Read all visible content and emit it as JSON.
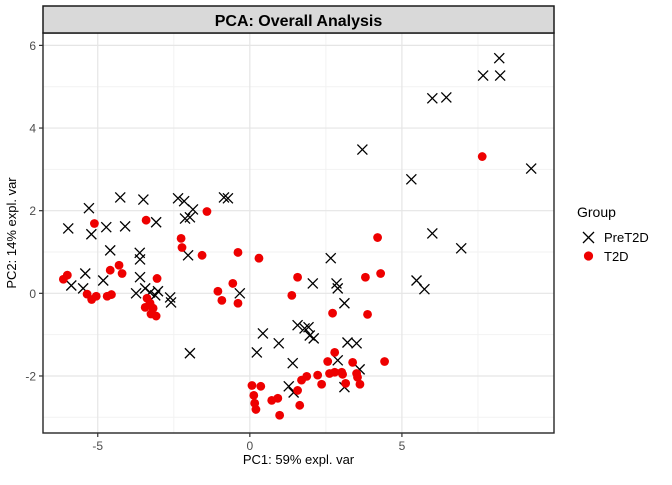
{
  "figure": {
    "strip_title": "PCA: Overall Analysis"
  },
  "colors": {
    "strip_fill": "#D9D9D9",
    "strip_border": "#1A1A1A",
    "panel_border": "#262626",
    "grid_major": "#E5E5E5",
    "grid_minor": "#F2F2F2",
    "tick_mark": "#333333",
    "tick_label": "#4d4d4d",
    "pret2d": "#000000",
    "t2d": "#EE0000"
  },
  "chart_data": {
    "type": "scatter",
    "title": "PCA: Overall Analysis",
    "xlabel": "PC1: 59% expl. var",
    "ylabel": "PC2: 14% expl. var",
    "xlim": [
      -6.8,
      10.0
    ],
    "ylim": [
      -3.38,
      6.3
    ],
    "x_major_ticks": [
      -5,
      0,
      5
    ],
    "x_minor_ticks": [
      -2.5,
      2.5,
      7.5
    ],
    "y_major_ticks": [
      -2,
      0,
      2,
      4,
      6
    ],
    "y_minor_ticks": [
      -3,
      -1,
      1,
      3,
      5
    ],
    "grid": true,
    "legend": {
      "title": "Group",
      "position": "right",
      "entries": [
        {
          "label": "PreT2D",
          "marker": "x",
          "color": "#000000"
        },
        {
          "label": "T2D",
          "marker": "circle",
          "color": "#EE0000"
        }
      ]
    },
    "series": [
      {
        "name": "PreT2D",
        "marker": "x",
        "color": "#000000",
        "points": [
          [
            8.2,
            5.69
          ],
          [
            7.67,
            5.27
          ],
          [
            8.23,
            5.27
          ],
          [
            6.0,
            4.72
          ],
          [
            6.46,
            4.74
          ],
          [
            3.7,
            3.48
          ],
          [
            9.25,
            3.02
          ],
          [
            5.31,
            2.76
          ],
          [
            6.0,
            1.45
          ],
          [
            6.95,
            1.09
          ],
          [
            5.48,
            0.31
          ],
          [
            5.74,
            0.1
          ],
          [
            2.66,
            0.85
          ],
          [
            2.85,
            0.24
          ],
          [
            2.89,
            0.12
          ],
          [
            2.07,
            0.24
          ],
          [
            3.11,
            -0.24
          ],
          [
            3.21,
            -1.19
          ],
          [
            3.51,
            -1.21
          ],
          [
            2.89,
            -1.62
          ],
          [
            3.61,
            -1.84
          ],
          [
            3.11,
            -2.27
          ],
          [
            1.57,
            -0.77
          ],
          [
            1.8,
            -0.85
          ],
          [
            1.93,
            -0.82
          ],
          [
            1.97,
            -1.02
          ],
          [
            2.1,
            -1.09
          ],
          [
            1.41,
            -1.69
          ],
          [
            1.28,
            -2.25
          ],
          [
            1.44,
            -2.4
          ],
          [
            0.43,
            -0.97
          ],
          [
            0.23,
            -1.43
          ],
          [
            0.95,
            -1.21
          ],
          [
            -1.97,
            -1.45
          ],
          [
            -0.33,
            0.0
          ],
          [
            -0.85,
            2.32
          ],
          [
            -0.72,
            2.3
          ],
          [
            -1.87,
            2.03
          ],
          [
            -1.97,
            1.84
          ],
          [
            -2.03,
            0.92
          ],
          [
            -4.26,
            2.32
          ],
          [
            -3.5,
            2.27
          ],
          [
            -2.36,
            2.3
          ],
          [
            -2.16,
            2.23
          ],
          [
            -5.29,
            2.06
          ],
          [
            -5.97,
            1.57
          ],
          [
            -5.21,
            1.43
          ],
          [
            -4.72,
            1.6
          ],
          [
            -4.1,
            1.62
          ],
          [
            -3.08,
            1.72
          ],
          [
            -2.13,
            1.81
          ],
          [
            -4.59,
            1.04
          ],
          [
            -3.62,
            0.98
          ],
          [
            -5.41,
            0.48
          ],
          [
            -4.82,
            0.31
          ],
          [
            -5.87,
            0.19
          ],
          [
            -5.48,
            0.12
          ],
          [
            -3.61,
            0.82
          ],
          [
            -3.61,
            0.39
          ],
          [
            -3.44,
            0.12
          ],
          [
            -3.28,
            0.02
          ],
          [
            -3.11,
            -0.05
          ],
          [
            -3.02,
            0.05
          ],
          [
            -2.62,
            -0.1
          ],
          [
            -3.74,
            0.0
          ],
          [
            -2.59,
            -0.22
          ]
        ]
      },
      {
        "name": "T2D",
        "marker": "circle",
        "color": "#EE0000",
        "points": [
          [
            -6.13,
            0.34
          ],
          [
            -6.0,
            0.44
          ],
          [
            -5.11,
            1.69
          ],
          [
            -3.41,
            1.77
          ],
          [
            -4.3,
            0.68
          ],
          [
            -4.59,
            0.56
          ],
          [
            -4.2,
            0.48
          ],
          [
            -5.35,
            -0.02
          ],
          [
            -5.2,
            -0.15
          ],
          [
            -5.05,
            -0.07
          ],
          [
            -4.69,
            -0.07
          ],
          [
            -4.55,
            -0.03
          ],
          [
            -3.05,
            0.36
          ],
          [
            -3.38,
            -0.12
          ],
          [
            -3.28,
            -0.24
          ],
          [
            -3.44,
            -0.34
          ],
          [
            -3.18,
            -0.36
          ],
          [
            -3.25,
            -0.5
          ],
          [
            -3.08,
            -0.55
          ],
          [
            -2.26,
            1.33
          ],
          [
            -2.23,
            1.11
          ],
          [
            -1.41,
            1.98
          ],
          [
            -1.57,
            0.92
          ],
          [
            -1.05,
            0.05
          ],
          [
            -0.56,
            0.24
          ],
          [
            -0.92,
            -0.17
          ],
          [
            -0.39,
            -0.24
          ],
          [
            -0.39,
            0.99
          ],
          [
            0.3,
            0.85
          ],
          [
            1.57,
            0.39
          ],
          [
            1.38,
            -0.05
          ],
          [
            0.07,
            -2.23
          ],
          [
            0.36,
            -2.25
          ],
          [
            0.13,
            -2.47
          ],
          [
            0.16,
            -2.66
          ],
          [
            0.2,
            -2.81
          ],
          [
            0.72,
            -2.59
          ],
          [
            0.92,
            -2.54
          ],
          [
            0.98,
            -2.95
          ],
          [
            1.7,
            -2.1
          ],
          [
            1.57,
            -2.35
          ],
          [
            1.64,
            -2.71
          ],
          [
            1.87,
            -2.01
          ],
          [
            2.23,
            -1.98
          ],
          [
            2.36,
            -2.2
          ],
          [
            2.62,
            -1.94
          ],
          [
            2.79,
            -1.91
          ],
          [
            3.05,
            -1.96
          ],
          [
            3.15,
            -2.18
          ],
          [
            3.51,
            -1.94
          ],
          [
            3.54,
            -2.03
          ],
          [
            3.62,
            -2.2
          ],
          [
            2.56,
            -1.65
          ],
          [
            2.79,
            -1.43
          ],
          [
            3.38,
            -1.67
          ],
          [
            4.43,
            -1.65
          ],
          [
            3.02,
            -1.91
          ],
          [
            2.72,
            -0.48
          ],
          [
            3.87,
            -0.51
          ],
          [
            4.2,
            1.35
          ],
          [
            3.8,
            0.39
          ],
          [
            4.3,
            0.48
          ],
          [
            7.64,
            3.31
          ]
        ]
      }
    ]
  }
}
